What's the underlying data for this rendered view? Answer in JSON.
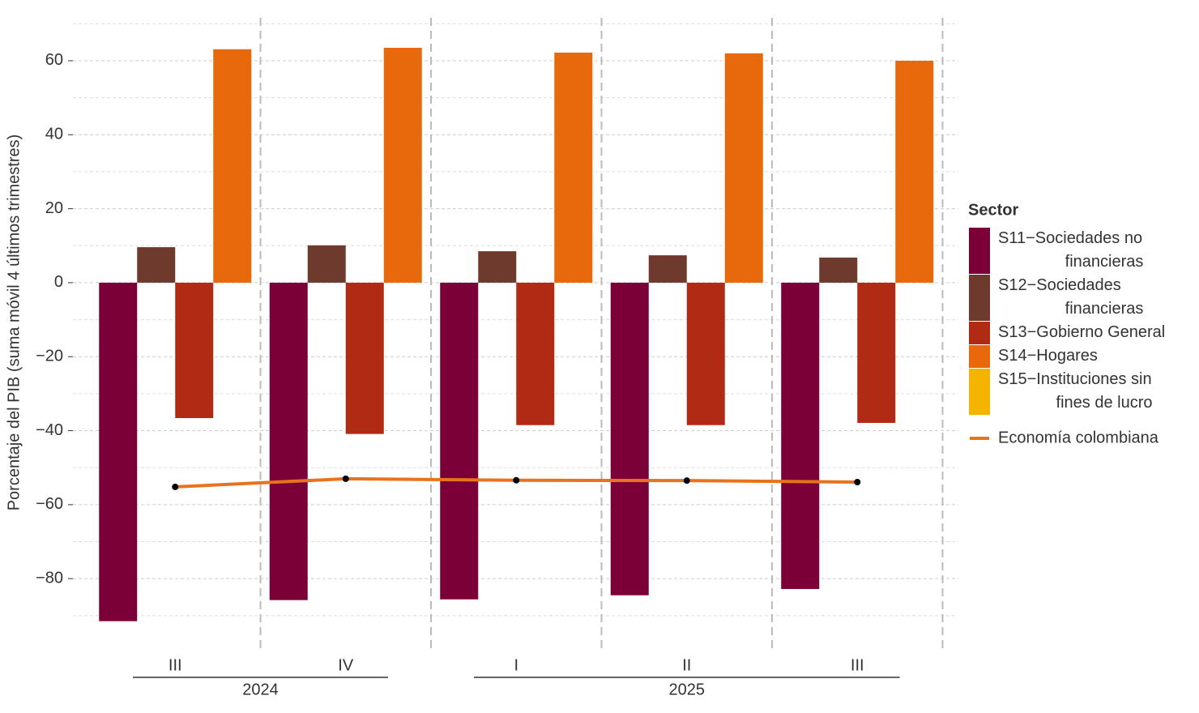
{
  "chart_data": {
    "type": "bar",
    "y_label": "Porcentaje del PIB (suma móvil 4 últimos trimestres)",
    "categories": [
      "III",
      "IV",
      "I",
      "II",
      "III"
    ],
    "x_groups": [
      {
        "label": "2024",
        "count": 2
      },
      {
        "label": "2025",
        "count": 3
      }
    ],
    "legend_title": "Sector",
    "series": [
      {
        "name": "S11−Sociedades no\nfinancieras",
        "color": "#7b0038",
        "values": [
          -91.5,
          -85.8,
          -85.6,
          -84.5,
          -82.8
        ]
      },
      {
        "name": "S12−Sociedades\nfinancieras",
        "color": "#6e3a2e",
        "values": [
          9.6,
          10.1,
          8.5,
          7.4,
          6.8
        ]
      },
      {
        "name": "S13−Gobierno General",
        "color": "#b02a14",
        "values": [
          -36.6,
          -40.9,
          -38.5,
          -38.5,
          -37.9
        ]
      },
      {
        "name": "S14−Hogares",
        "color": "#e8680c",
        "values": [
          63.1,
          63.5,
          62.2,
          62.0,
          60.0
        ]
      },
      {
        "name": "S15−Instituciones sin\nfines de lucro",
        "color": "#f5b400",
        "values": [
          null,
          null,
          null,
          null,
          null
        ]
      }
    ],
    "line": {
      "type": "line",
      "name": "Economía colombiana",
      "color": "#e8731e",
      "values": [
        -55.2,
        -53.0,
        -53.4,
        -53.5,
        -53.9
      ]
    },
    "ylim": [
      -98.8,
      71.6
    ],
    "yticks": [
      {
        "value": -80,
        "label": "−80"
      },
      {
        "value": -60,
        "label": "−60"
      },
      {
        "value": -40,
        "label": "−40"
      },
      {
        "value": -20,
        "label": "−20"
      },
      0,
      20,
      40,
      60
    ],
    "minor_yticks": [
      -90,
      -70,
      -50,
      -30,
      -10,
      10,
      30,
      50,
      70
    ],
    "grid": true
  }
}
